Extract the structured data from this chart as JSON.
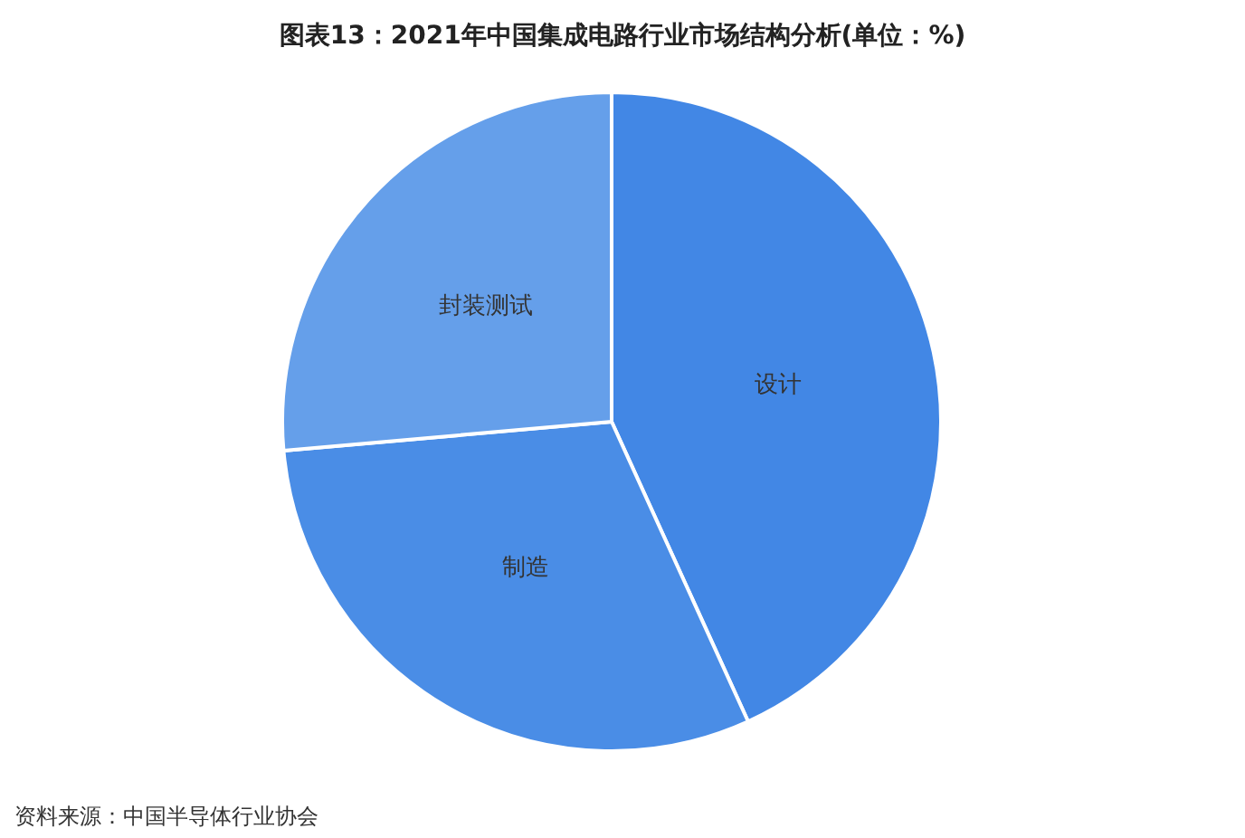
{
  "chart_data": {
    "type": "pie",
    "title": "图表13：2021年中国集成电路行业市场结构分析(单位：%)",
    "categories": [
      "设计",
      "制造",
      "封装测试"
    ],
    "values": [
      43.2,
      30.4,
      26.4
    ],
    "colors": [
      "#4287e5",
      "#4a8de6",
      "#659fea"
    ],
    "legend": false,
    "annotations": [
      "资料来源：中国半导体行业协会"
    ]
  }
}
